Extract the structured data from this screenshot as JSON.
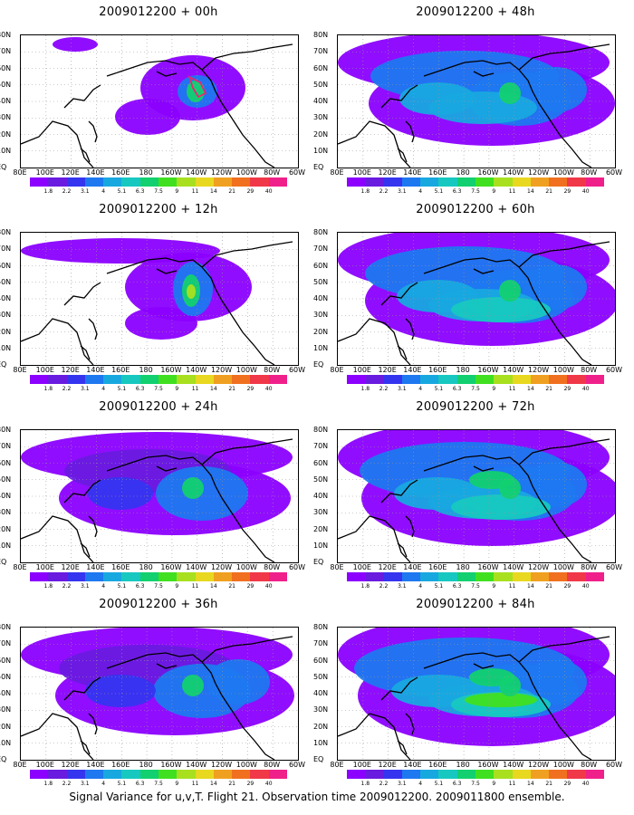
{
  "panels": [
    {
      "title": "2009012200 + 00h",
      "spread": 0
    },
    {
      "title": "2009012200 + 48h",
      "spread": 4
    },
    {
      "title": "2009012200 + 12h",
      "spread": 1
    },
    {
      "title": "2009012200 + 60h",
      "spread": 5
    },
    {
      "title": "2009012200 + 24h",
      "spread": 2
    },
    {
      "title": "2009012200 + 72h",
      "spread": 6
    },
    {
      "title": "2009012200 + 36h",
      "spread": 3
    },
    {
      "title": "2009012200 + 84h",
      "spread": 7
    }
  ],
  "lat_labels": [
    "80N",
    "70N",
    "60N",
    "50N",
    "40N",
    "30N",
    "20N",
    "10N",
    "EQ"
  ],
  "lon_labels": [
    "80E",
    "100E",
    "120E",
    "140E",
    "160E",
    "180",
    "160W",
    "140W",
    "120W",
    "100W",
    "80W",
    "60W"
  ],
  "colorbar": {
    "labels": [
      "1.8",
      "2.2",
      "3.1",
      "4",
      "5.1",
      "6.3",
      "7.5",
      "9",
      "11",
      "14",
      "21",
      "29",
      "40"
    ],
    "colors": [
      "#8b00ff",
      "#6a1be0",
      "#3535f0",
      "#1e78f0",
      "#18a8e0",
      "#17c8c0",
      "#12d070",
      "#40e020",
      "#a8e020",
      "#e8d820",
      "#f0a020",
      "#f07020",
      "#f03848",
      "#f0208a"
    ]
  },
  "footer": "Signal Variance for u,v,T. Flight 21. Observation time 2009012200. 2009011800 ensemble."
}
